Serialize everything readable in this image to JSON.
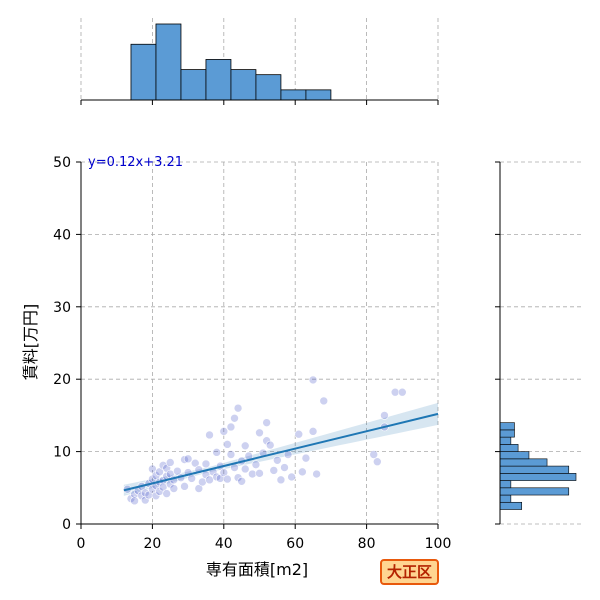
{
  "chart_data": {
    "type": "scatter",
    "title": "",
    "xlabel": "専有面積[m2]",
    "ylabel": "賃料[万円]",
    "xlim": [
      0,
      100
    ],
    "ylim": [
      0,
      50
    ],
    "x_ticks": [
      "0",
      "20",
      "40",
      "60",
      "80",
      "100"
    ],
    "y_ticks": [
      "0",
      "10",
      "20",
      "30",
      "40",
      "50"
    ],
    "grid": true,
    "point_color": "#4a58c9",
    "hist_color": "#5b9bd5",
    "line_color": "#1f77b4",
    "regression": {
      "equation": "y=0.12x+3.21",
      "slope": 0.12,
      "intercept": 3.21,
      "x_range": [
        12,
        100
      ]
    },
    "points": [
      [
        13,
        4.8
      ],
      [
        14,
        3.5
      ],
      [
        15,
        4.1
      ],
      [
        15,
        3.2
      ],
      [
        16,
        4.6
      ],
      [
        17,
        3.9
      ],
      [
        17,
        5.2
      ],
      [
        18,
        4.3
      ],
      [
        18,
        3.3
      ],
      [
        19,
        5.6
      ],
      [
        19,
        4.0
      ],
      [
        20,
        6.2
      ],
      [
        20,
        7.6
      ],
      [
        20,
        4.8
      ],
      [
        21,
        5.3
      ],
      [
        21,
        6.7
      ],
      [
        21,
        3.9
      ],
      [
        22,
        5.8
      ],
      [
        22,
        7.2
      ],
      [
        22,
        4.5
      ],
      [
        23,
        6.0
      ],
      [
        23,
        8.1
      ],
      [
        23,
        5.1
      ],
      [
        24,
        6.6
      ],
      [
        24,
        4.2
      ],
      [
        24,
        7.7
      ],
      [
        25,
        5.5
      ],
      [
        25,
        6.9
      ],
      [
        25,
        8.5
      ],
      [
        26,
        6.1
      ],
      [
        26,
        4.9
      ],
      [
        27,
        7.3
      ],
      [
        28,
        6.4
      ],
      [
        29,
        8.9
      ],
      [
        29,
        5.2
      ],
      [
        30,
        7.1
      ],
      [
        30,
        9.0
      ],
      [
        31,
        6.3
      ],
      [
        32,
        8.4
      ],
      [
        33,
        4.9
      ],
      [
        33,
        7.5
      ],
      [
        34,
        5.8
      ],
      [
        35,
        6.8
      ],
      [
        35,
        8.3
      ],
      [
        36,
        12.3
      ],
      [
        36,
        6.1
      ],
      [
        37,
        7.2
      ],
      [
        38,
        6.5
      ],
      [
        38,
        9.9
      ],
      [
        39,
        6.3
      ],
      [
        39,
        8.0
      ],
      [
        40,
        12.8
      ],
      [
        40,
        7.1
      ],
      [
        41,
        11.0
      ],
      [
        41,
        6.2
      ],
      [
        42,
        13.4
      ],
      [
        42,
        9.6
      ],
      [
        43,
        14.6
      ],
      [
        43,
        7.8
      ],
      [
        44,
        16.0
      ],
      [
        44,
        6.4
      ],
      [
        45,
        8.7
      ],
      [
        45,
        5.9
      ],
      [
        46,
        10.8
      ],
      [
        46,
        7.6
      ],
      [
        47,
        9.4
      ],
      [
        48,
        6.9
      ],
      [
        49,
        8.2
      ],
      [
        50,
        12.6
      ],
      [
        50,
        7.0
      ],
      [
        51,
        9.8
      ],
      [
        52,
        14.0
      ],
      [
        52,
        11.5
      ],
      [
        53,
        10.9
      ],
      [
        54,
        7.4
      ],
      [
        55,
        8.8
      ],
      [
        56,
        6.1
      ],
      [
        57,
        7.8
      ],
      [
        58,
        9.6
      ],
      [
        59,
        6.5
      ],
      [
        61,
        12.4
      ],
      [
        62,
        7.2
      ],
      [
        63,
        9.1
      ],
      [
        65,
        19.9
      ],
      [
        65,
        12.8
      ],
      [
        66,
        6.9
      ],
      [
        68,
        17.0
      ],
      [
        82,
        9.6
      ],
      [
        83,
        8.6
      ],
      [
        85,
        15.0
      ],
      [
        85,
        13.4
      ],
      [
        88,
        18.2
      ],
      [
        90,
        18.2
      ]
    ],
    "x_hist": {
      "bin_edges": [
        0,
        7,
        14,
        21,
        28,
        35,
        42,
        49,
        56,
        63,
        70,
        77,
        84,
        91,
        98
      ],
      "counts": [
        0,
        0,
        11,
        15,
        6,
        8,
        6,
        5,
        2,
        2,
        0,
        0,
        0,
        0
      ]
    },
    "x_hist_max": 15,
    "y_hist": {
      "bin_edges": [
        2,
        3,
        4,
        5,
        6,
        7,
        8,
        9,
        10,
        11,
        12,
        13,
        14,
        15,
        16,
        17,
        18
      ],
      "counts": [
        6,
        3,
        19,
        3,
        21,
        19,
        13,
        8,
        5,
        3,
        4,
        4,
        0,
        0,
        0,
        0
      ]
    },
    "y_hist_max": 21
  },
  "badge": {
    "label": "大正区"
  }
}
